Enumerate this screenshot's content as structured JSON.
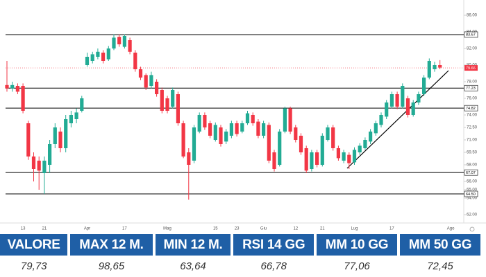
{
  "chart_data": {
    "type": "candlestick",
    "categories": [
      null,
      null,
      null,
      "13",
      null,
      null,
      null,
      "21",
      null,
      null,
      null,
      null,
      null,
      null,
      null,
      "Apr",
      null,
      null,
      null,
      null,
      null,
      null,
      "17",
      null,
      null,
      null,
      null,
      null,
      null,
      null,
      "Mag",
      null,
      null,
      null,
      null,
      null,
      null,
      null,
      null,
      "15",
      null,
      null,
      null,
      "23",
      null,
      null,
      null,
      null,
      "Giu",
      null,
      null,
      null,
      null,
      null,
      "12",
      null,
      null,
      null,
      null,
      "21",
      null,
      null,
      null,
      null,
      null,
      "Lug",
      null,
      null,
      null,
      null,
      null,
      null,
      "17",
      null,
      null,
      null,
      null,
      null,
      null,
      null,
      null,
      null,
      null,
      "Ago"
    ],
    "open": [
      77.6,
      77.2,
      77.5,
      77.5,
      73.0,
      69.0,
      68.5,
      67.0,
      68.0,
      70.5,
      72.0,
      70.0,
      73.0,
      73.5,
      74.5,
      80.0,
      80.5,
      81.0,
      81.5,
      80.7,
      82.0,
      83.4,
      82.2,
      83.0,
      81.5,
      79.5,
      78.8,
      77.5,
      78.0,
      77.0,
      76.0,
      75.0,
      76.5,
      73.0,
      69.5,
      68.5,
      72.0,
      74.0,
      73.0,
      71.0,
      72.5,
      70.8,
      71.5,
      73.0,
      72.0,
      73.0,
      74.0,
      73.2,
      71.5,
      72.8,
      69.5,
      68.0,
      72.0,
      74.8,
      72.5,
      71.5,
      70.0,
      67.5,
      69.5,
      68.0,
      71.0,
      72.5,
      70.0,
      68.5,
      69.2,
      68.3,
      69.5,
      70.0,
      70.8,
      71.8,
      72.8,
      73.8,
      75.0,
      76.5,
      75.0,
      76.0,
      74.0,
      75.5,
      76.5,
      78.5,
      79.5,
      80.0,
      null,
      null
    ],
    "high": [
      80.5,
      78.0,
      77.8,
      77.8,
      73.3,
      69.5,
      69.0,
      69.0,
      71.0,
      73.0,
      72.5,
      74.0,
      74.5,
      74.8,
      76.3,
      81.5,
      81.6,
      82.0,
      81.8,
      82.3,
      83.7,
      83.7,
      83.7,
      83.3,
      81.8,
      79.8,
      79.0,
      79.2,
      78.3,
      77.3,
      76.3,
      77.3,
      76.8,
      73.3,
      70.0,
      72.8,
      74.3,
      74.3,
      73.3,
      73.1,
      72.8,
      72.3,
      73.3,
      73.3,
      73.3,
      74.5,
      74.3,
      73.5,
      73.3,
      73.1,
      69.8,
      72.3,
      75.0,
      75.0,
      72.8,
      71.8,
      70.3,
      69.8,
      69.8,
      71.8,
      72.8,
      72.8,
      70.3,
      69.8,
      69.5,
      70.1,
      70.6,
      71.3,
      72.3,
      73.3,
      74.3,
      75.8,
      76.8,
      76.8,
      77.8,
      76.3,
      75.8,
      76.8,
      78.8,
      80.8,
      80.4,
      80.6,
      null,
      null
    ],
    "low": [
      76.8,
      76.8,
      76.5,
      74.2,
      68.6,
      66.0,
      65.0,
      64.5,
      67.0,
      70.0,
      69.5,
      69.5,
      72.5,
      73.0,
      74.3,
      79.8,
      80.2,
      80.7,
      80.2,
      80.5,
      81.8,
      82.2,
      82.0,
      81.3,
      79.2,
      78.2,
      77.0,
      77.2,
      76.2,
      74.2,
      74.2,
      74.8,
      72.7,
      68.8,
      63.8,
      68.2,
      71.8,
      72.2,
      71.2,
      70.8,
      70.2,
      70.5,
      71.2,
      71.4,
      71.8,
      72.8,
      72.7,
      71.2,
      71.2,
      68.2,
      67.2,
      67.8,
      71.8,
      71.7,
      70.7,
      69.2,
      67.0,
      67.2,
      67.7,
      67.8,
      70.8,
      69.7,
      68.5,
      68.2,
      67.5,
      68.0,
      69.2,
      69.8,
      70.5,
      71.5,
      72.5,
      73.5,
      74.8,
      74.7,
      74.8,
      73.7,
      73.8,
      75.2,
      76.3,
      78.3,
      79.2,
      79.5,
      null,
      null
    ],
    "close": [
      77.2,
      77.6,
      76.8,
      74.5,
      69.0,
      67.5,
      67.3,
      68.5,
      70.5,
      72.5,
      70.0,
      73.5,
      74.0,
      74.3,
      76.0,
      81.0,
      81.3,
      81.6,
      80.5,
      82.0,
      83.3,
      82.5,
      83.5,
      81.6,
      79.5,
      78.5,
      77.3,
      78.8,
      76.5,
      74.5,
      74.5,
      77.0,
      73.0,
      69.0,
      68.0,
      72.5,
      74.0,
      72.5,
      71.5,
      72.8,
      70.5,
      72.0,
      73.0,
      71.7,
      73.0,
      74.2,
      73.0,
      71.5,
      73.0,
      68.5,
      67.5,
      72.0,
      74.8,
      72.0,
      71.0,
      69.5,
      67.3,
      69.5,
      68.0,
      71.5,
      72.5,
      70.0,
      68.8,
      69.5,
      68.2,
      69.8,
      70.3,
      71.0,
      72.0,
      73.0,
      74.0,
      75.5,
      76.5,
      75.0,
      77.5,
      74.0,
      75.5,
      76.5,
      78.5,
      80.5,
      80.0,
      79.7,
      null,
      null
    ],
    "ylim": [
      61,
      87
    ],
    "yticks": [
      {
        "value": 86,
        "label": "86.00"
      },
      {
        "value": 84,
        "label": "84.00"
      },
      {
        "value": 82,
        "label": "82.00"
      },
      {
        "value": 80,
        "label": "80.00"
      },
      {
        "value": 78,
        "label": "78.00"
      },
      {
        "value": 76,
        "label": "76.00"
      },
      {
        "value": 74,
        "label": "74.00"
      },
      {
        "value": 72.5,
        "label": "72.50"
      },
      {
        "value": 71,
        "label": "71.00"
      },
      {
        "value": 69.5,
        "label": "69.50"
      },
      {
        "value": 68,
        "label": "68.00"
      },
      {
        "value": 66,
        "label": "66.00"
      },
      {
        "value": 65,
        "label": "65.00"
      },
      {
        "value": 64,
        "label": "64.00"
      },
      {
        "value": 62,
        "label": "62.00"
      }
    ],
    "up_color": "#22ab94",
    "down_color": "#f23645",
    "levels": [
      {
        "value": 83.67,
        "label": "83.67"
      },
      {
        "value": 77.23,
        "label": "77.23"
      },
      {
        "value": 74.82,
        "label": "74.82"
      },
      {
        "value": 67.07,
        "label": "67.07"
      },
      {
        "value": 64.5,
        "label": "64.50"
      }
    ],
    "last_price": {
      "value": 79.66,
      "label": "79.66"
    }
  },
  "table": {
    "header": [
      "VALORE",
      "MAX 12 M.",
      "MIN 12 M.",
      "RSI 14 GG",
      "MM 10 GG",
      "MM 50 GG"
    ],
    "rows": [
      [
        "79,73",
        "98,65",
        "63,64",
        "66,78",
        "77,06",
        "72,45"
      ]
    ]
  }
}
